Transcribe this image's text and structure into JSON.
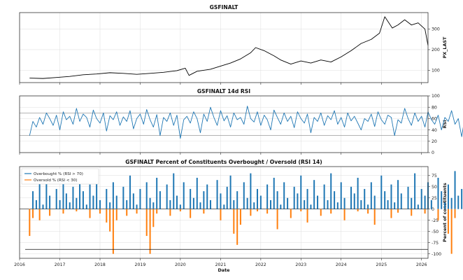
{
  "chart_data": [
    {
      "type": "line",
      "title": "GSFINALT",
      "xlabel": "",
      "ylabel": "PX_LAST",
      "xlim": [
        "2016-01-01",
        "2026-03-01"
      ],
      "ylim": [
        40,
        380
      ],
      "yticks": [
        100,
        200,
        300
      ],
      "grid": true,
      "series_color": "#000000",
      "series": [
        {
          "x": [
            "2016-04-01",
            "2016-08-01",
            "2016-12-01",
            "2017-04-01",
            "2017-08-01",
            "2017-12-01",
            "2018-04-01",
            "2018-08-01",
            "2018-12-01",
            "2019-04-01",
            "2019-08-01",
            "2019-12-01",
            "2020-02-15",
            "2020-03-20",
            "2020-06-01",
            "2020-10-01",
            "2021-01-01",
            "2021-04-01",
            "2021-07-01",
            "2021-10-01",
            "2021-11-15",
            "2022-02-01",
            "2022-05-01",
            "2022-07-01",
            "2022-10-01",
            "2023-01-01",
            "2023-04-01",
            "2023-07-01",
            "2023-10-01",
            "2024-01-01",
            "2024-04-01",
            "2024-07-01",
            "2024-10-01",
            "2024-12-15",
            "2025-02-01",
            "2025-04-10",
            "2025-06-01",
            "2025-08-01",
            "2025-10-01",
            "2025-12-01",
            "2026-02-01",
            "2026-03-01"
          ],
          "values": [
            62,
            60,
            65,
            70,
            78,
            82,
            88,
            85,
            80,
            85,
            90,
            98,
            110,
            75,
            95,
            105,
            120,
            135,
            155,
            185,
            210,
            195,
            170,
            150,
            130,
            145,
            135,
            150,
            140,
            165,
            195,
            230,
            250,
            280,
            360,
            305,
            320,
            345,
            320,
            330,
            300,
            220
          ]
        }
      ]
    },
    {
      "type": "line",
      "title": "GSFINALT 14d RSI",
      "xlabel": "",
      "ylabel": "RSI",
      "xlim": [
        "2016-01-01",
        "2026-03-01"
      ],
      "ylim": [
        0,
        100
      ],
      "yticks": [
        0,
        20,
        40,
        60,
        80,
        100
      ],
      "hlines": [
        70,
        30
      ],
      "grid": true,
      "series_color": "#1f77b4",
      "series": [
        {
          "x_start": "2016-04-01",
          "step_months": 1,
          "values": [
            30,
            55,
            45,
            62,
            50,
            70,
            60,
            48,
            66,
            40,
            72,
            58,
            64,
            50,
            78,
            55,
            68,
            62,
            45,
            75,
            60,
            52,
            70,
            38,
            65,
            58,
            72,
            48,
            63,
            55,
            74,
            42,
            60,
            68,
            50,
            76,
            58,
            45,
            67,
            30,
            62,
            55,
            70,
            48,
            66,
            25,
            58,
            64,
            52,
            72,
            60,
            35,
            68,
            55,
            80,
            62,
            48,
            74,
            56,
            65,
            45,
            70,
            58,
            62,
            50,
            82,
            60,
            54,
            72,
            48,
            66,
            58,
            40,
            75,
            62,
            50,
            70,
            55,
            64,
            44,
            72,
            60,
            52,
            68,
            35,
            62,
            55,
            70,
            48,
            65,
            58,
            74,
            50,
            62,
            45,
            70,
            56,
            64,
            52,
            40,
            60,
            55,
            68,
            46,
            72,
            58,
            50,
            66,
            62,
            30,
            58,
            52,
            78,
            60,
            48,
            70,
            55,
            64,
            45,
            72,
            58,
            50,
            66,
            40,
            62,
            55,
            74,
            50,
            60,
            28,
            65,
            56,
            70,
            48,
            62,
            58,
            44,
            68,
            55,
            72,
            30,
            60,
            52,
            66,
            45,
            78,
            58,
            50,
            70,
            35,
            62,
            55,
            68,
            48,
            64,
            40,
            75,
            58,
            52,
            70,
            45,
            60,
            55,
            66,
            42,
            72,
            58,
            50,
            76,
            48,
            62,
            35,
            68,
            55,
            60,
            45,
            70,
            52,
            32,
            38
          ]
        }
      ]
    },
    {
      "type": "bar",
      "title": "GSFINALT Percent of Constituents Overbought / Oversold (RSI 14)",
      "xlabel": "Date",
      "ylabel": "Percent of constituents",
      "xlim": [
        "2016-01-01",
        "2026-03-01"
      ],
      "ylim": [
        -110,
        95
      ],
      "yticks": [
        -100,
        -75,
        -50,
        -25,
        0,
        25,
        50,
        75
      ],
      "xticks": [
        "2016",
        "2017",
        "2018",
        "2019",
        "2020",
        "2021",
        "2022",
        "2023",
        "2024",
        "2025",
        "2026"
      ],
      "grid": true,
      "legend": "upper-left",
      "reference_line": -90,
      "series": [
        {
          "name": "Overbought % (RSI > 70)",
          "color": "#1f77b4",
          "x_start": "2016-04-01",
          "step_months": 1,
          "values": [
            0,
            40,
            20,
            60,
            10,
            80,
            30,
            0,
            45,
            20,
            60,
            35,
            15,
            50,
            25,
            70,
            40,
            10,
            55,
            30,
            85,
            20,
            0,
            45,
            15,
            60,
            30,
            0,
            50,
            20,
            75,
            35,
            10,
            45,
            0,
            60,
            25,
            15,
            70,
            40,
            0,
            55,
            20,
            80,
            30,
            10,
            60,
            0,
            45,
            25,
            70,
            15,
            40,
            55,
            20,
            0,
            65,
            35,
            10,
            50,
            75,
            20,
            40,
            0,
            60,
            25,
            80,
            15,
            45,
            30,
            0,
            55,
            20,
            70,
            40,
            10,
            60,
            25,
            0,
            50,
            35,
            75,
            20,
            45,
            10,
            65,
            30,
            0,
            55,
            20,
            80,
            40,
            15,
            60,
            25,
            0,
            50,
            35,
            70,
            20,
            45,
            10,
            60,
            30,
            0,
            75,
            40,
            20,
            55,
            15,
            65,
            35,
            0,
            50,
            25,
            80,
            10,
            45,
            30,
            60,
            20,
            0,
            70,
            40,
            15,
            55,
            25,
            85,
            30,
            45,
            10,
            60,
            20,
            0,
            50,
            35,
            75,
            15,
            40,
            65,
            25,
            0,
            55,
            30,
            70,
            20,
            45,
            10,
            60,
            35,
            0,
            50,
            25,
            80,
            40,
            15,
            65,
            20,
            45,
            0,
            55,
            30,
            70,
            10,
            40,
            25,
            60,
            0,
            45,
            20
          ]
        },
        {
          "name": "Oversold % (RSI < 30)",
          "color": "#ff7f0e",
          "x_start": "2016-04-01",
          "step_months": 1,
          "values": [
            -60,
            -20,
            0,
            -25,
            0,
            0,
            -15,
            0,
            0,
            0,
            -10,
            0,
            0,
            0,
            -5,
            0,
            0,
            0,
            -20,
            0,
            0,
            -10,
            0,
            -30,
            -50,
            -100,
            -25,
            0,
            0,
            -15,
            0,
            0,
            -10,
            0,
            0,
            -60,
            -100,
            -40,
            -10,
            0,
            0,
            0,
            -15,
            0,
            0,
            -5,
            0,
            0,
            -20,
            0,
            0,
            0,
            -10,
            0,
            0,
            0,
            0,
            -25,
            0,
            0,
            0,
            -55,
            -80,
            -35,
            0,
            0,
            -15,
            0,
            -5,
            0,
            0,
            -10,
            0,
            0,
            -45,
            0,
            0,
            0,
            -20,
            0,
            0,
            -5,
            0,
            -30,
            0,
            0,
            0,
            -15,
            0,
            0,
            -10,
            0,
            0,
            0,
            -25,
            0,
            0,
            0,
            -5,
            0,
            0,
            -10,
            0,
            -35,
            0,
            0,
            0,
            0,
            -20,
            0,
            -8,
            0,
            0,
            0,
            -15,
            0,
            0,
            0,
            -10,
            0,
            0,
            0,
            -25,
            0,
            0,
            -55,
            -100,
            -20,
            0,
            0,
            -10,
            0,
            0,
            -40,
            -80,
            -30,
            0,
            -15,
            0,
            -90,
            -100,
            -90
          ]
        }
      ]
    }
  ]
}
